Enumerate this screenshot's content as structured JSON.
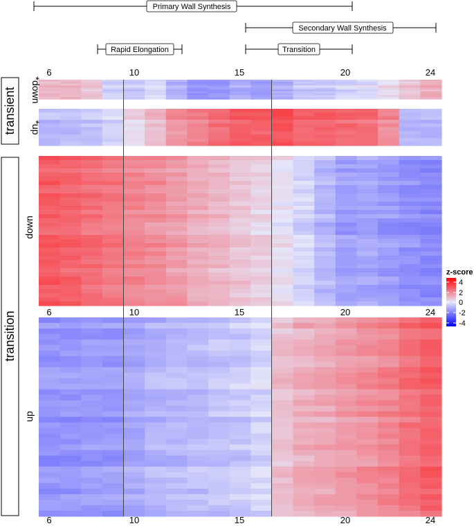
{
  "chart_data": {
    "type": "heatmap",
    "x_days": [
      6,
      7,
      8,
      9,
      10,
      11,
      12,
      13,
      14,
      15,
      16,
      17,
      18,
      19,
      20,
      21,
      22,
      23,
      24
    ],
    "tick_labels": [
      "6",
      "10",
      "15",
      "20",
      "24"
    ],
    "vertical_lines_between_days": [
      [
        9,
        10
      ],
      [
        16,
        17
      ]
    ],
    "phases": [
      {
        "label": "Primary Wall Synthesis",
        "start_day": 6,
        "end_day": 20
      },
      {
        "label": "Secondary Wall Synthesis",
        "start_day": 16,
        "end_day": 24
      },
      {
        "label": "Rapid Elongation",
        "start_day": 8.5,
        "end_day": 12.5
      },
      {
        "label": "Transition",
        "start_day": 16,
        "end_day": 20
      }
    ],
    "groups": [
      {
        "label": "transient",
        "panels": [
          "*down",
          "*up"
        ]
      },
      {
        "label": "transition",
        "panels": [
          "down",
          "up"
        ]
      }
    ],
    "panels": [
      {
        "label": "*down",
        "profile": [
          0.9,
          0.9,
          0.6,
          -0.3,
          -0.5,
          -0.2,
          -0.9,
          -1.4,
          -1.4,
          -1.0,
          -1.2,
          -0.9,
          -0.5,
          -0.5,
          -0.3,
          -0.2,
          0.2,
          0.6,
          1.0
        ]
      },
      {
        "label": "*up",
        "profile": [
          -0.7,
          -0.7,
          -0.6,
          -0.3,
          0.3,
          0.8,
          1.4,
          1.8,
          2.1,
          2.4,
          2.4,
          2.6,
          2.2,
          2.3,
          2.2,
          2.1,
          1.6,
          -0.8,
          -0.8
        ]
      },
      {
        "label": "down",
        "profile": [
          2.4,
          2.3,
          2.1,
          1.9,
          1.7,
          1.5,
          1.3,
          1.0,
          0.8,
          0.6,
          0.4,
          0.1,
          -0.3,
          -0.8,
          -1.2,
          -1.1,
          -1.3,
          -1.5,
          -1.6
        ]
      },
      {
        "label": "up",
        "profile": [
          -1.4,
          -1.4,
          -1.3,
          -1.3,
          -1.1,
          -0.9,
          -0.8,
          -0.7,
          -0.6,
          -0.5,
          -0.3,
          0.7,
          1.0,
          1.1,
          1.3,
          1.5,
          1.7,
          2.0,
          2.3
        ]
      }
    ],
    "legend": {
      "title": "z-score",
      "ticks": [
        "4",
        "2",
        "0",
        "-2",
        "-4"
      ],
      "range": [
        -4,
        4
      ]
    },
    "colors": {
      "low": "#0000ff",
      "mid": "#e6e6fa",
      "high": "#ff0000"
    }
  }
}
